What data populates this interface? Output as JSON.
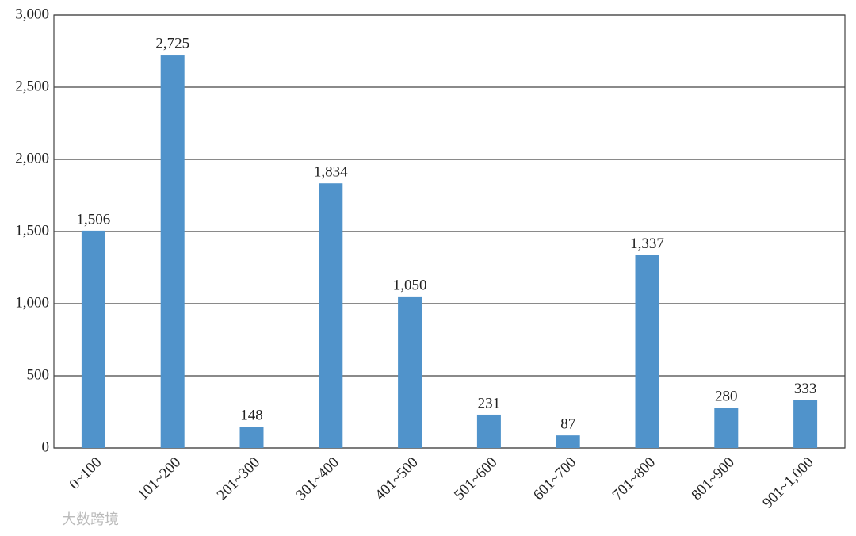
{
  "chart_data": {
    "type": "bar",
    "categories": [
      "0~100",
      "101~200",
      "201~300",
      "301~400",
      "401~500",
      "501~600",
      "601~700",
      "701~800",
      "801~900",
      "901~1,000"
    ],
    "values": [
      1506,
      2725,
      148,
      1834,
      1050,
      231,
      87,
      1337,
      280,
      333
    ],
    "value_labels": [
      "1,506",
      "2,725",
      "148",
      "1,834",
      "1,050",
      "231",
      "87",
      "1,337",
      "280",
      "333"
    ],
    "color": "#5093cb",
    "ylim": [
      0,
      3000
    ],
    "yticks": [
      0,
      500,
      {
        "value": 1000,
        "label": "1,000"
      },
      {
        "value": 1500,
        "label": "1,500"
      },
      {
        "value": 2000,
        "label": "2,000"
      },
      {
        "value": 2500,
        "label": "2,500"
      },
      {
        "value": 3000,
        "label": "3,000"
      }
    ],
    "grid": true
  },
  "watermark": "大数跨境"
}
